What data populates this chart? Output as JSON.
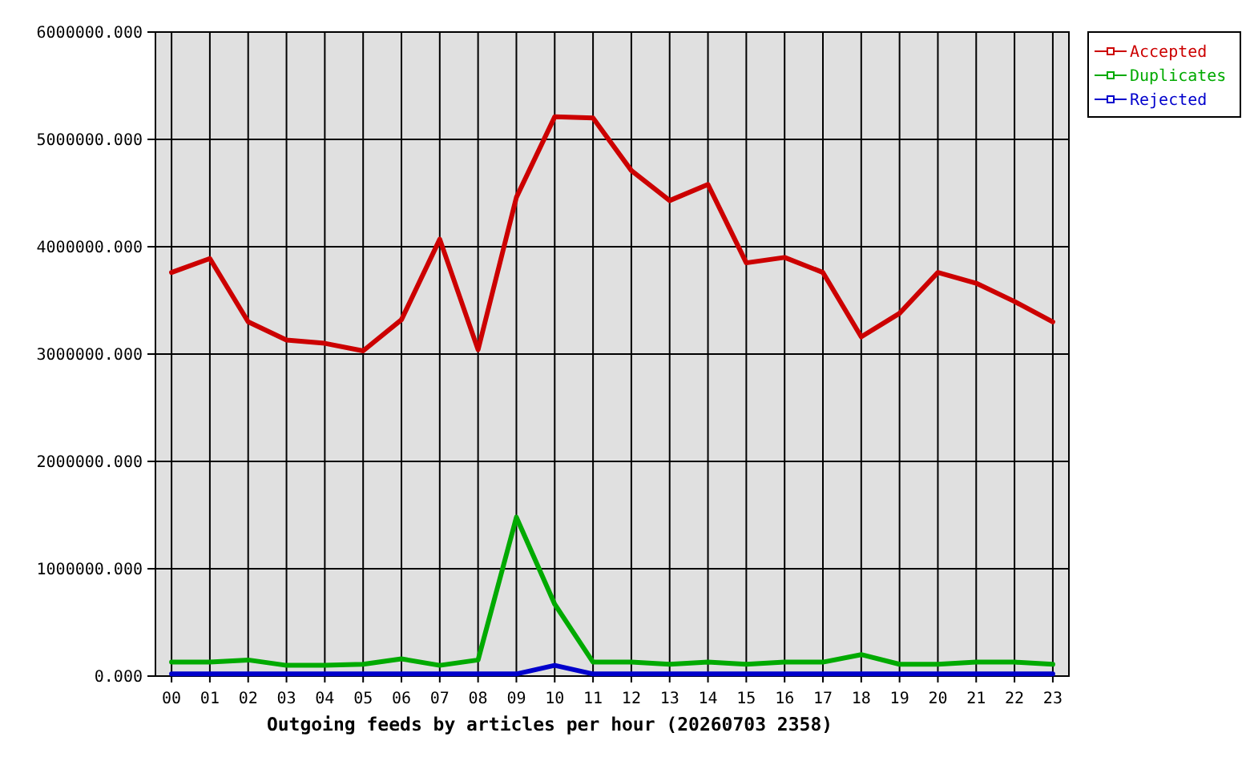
{
  "chart_data": {
    "type": "line",
    "xlabel": "Outgoing feeds by articles per hour (20260703 2358)",
    "categories": [
      "00",
      "01",
      "02",
      "03",
      "04",
      "05",
      "06",
      "07",
      "08",
      "09",
      "10",
      "11",
      "12",
      "13",
      "14",
      "15",
      "16",
      "17",
      "18",
      "19",
      "20",
      "21",
      "22",
      "23"
    ],
    "series": [
      {
        "name": "Accepted",
        "color": "#cc0000",
        "values": [
          3760000,
          3890000,
          3300000,
          3130000,
          3100000,
          3030000,
          3320000,
          4070000,
          3040000,
          4460000,
          5210000,
          5200000,
          4710000,
          4430000,
          4580000,
          3850000,
          3900000,
          3760000,
          3160000,
          3380000,
          3760000,
          3660000,
          3490000,
          3300000
        ]
      },
      {
        "name": "Duplicates",
        "color": "#00aa00",
        "values": [
          130000,
          130000,
          150000,
          100000,
          100000,
          110000,
          160000,
          100000,
          150000,
          1480000,
          670000,
          130000,
          130000,
          110000,
          130000,
          110000,
          130000,
          130000,
          200000,
          110000,
          110000,
          130000,
          130000,
          110000
        ]
      },
      {
        "name": "Rejected",
        "color": "#0000cc",
        "values": [
          20000,
          20000,
          20000,
          20000,
          20000,
          20000,
          20000,
          20000,
          20000,
          20000,
          100000,
          20000,
          20000,
          20000,
          20000,
          20000,
          20000,
          20000,
          20000,
          20000,
          20000,
          20000,
          20000,
          20000
        ]
      }
    ],
    "ylim": [
      0,
      6000000
    ],
    "yticks": [
      {
        "value": 0,
        "label": "0.000"
      },
      {
        "value": 1000000,
        "label": "1000000.000"
      },
      {
        "value": 2000000,
        "label": "2000000.000"
      },
      {
        "value": 3000000,
        "label": "3000000.000"
      },
      {
        "value": 4000000,
        "label": "4000000.000"
      },
      {
        "value": 5000000,
        "label": "5000000.000"
      },
      {
        "value": 6000000,
        "label": "6000000.000"
      }
    ],
    "grid": true,
    "legend": "top right"
  }
}
